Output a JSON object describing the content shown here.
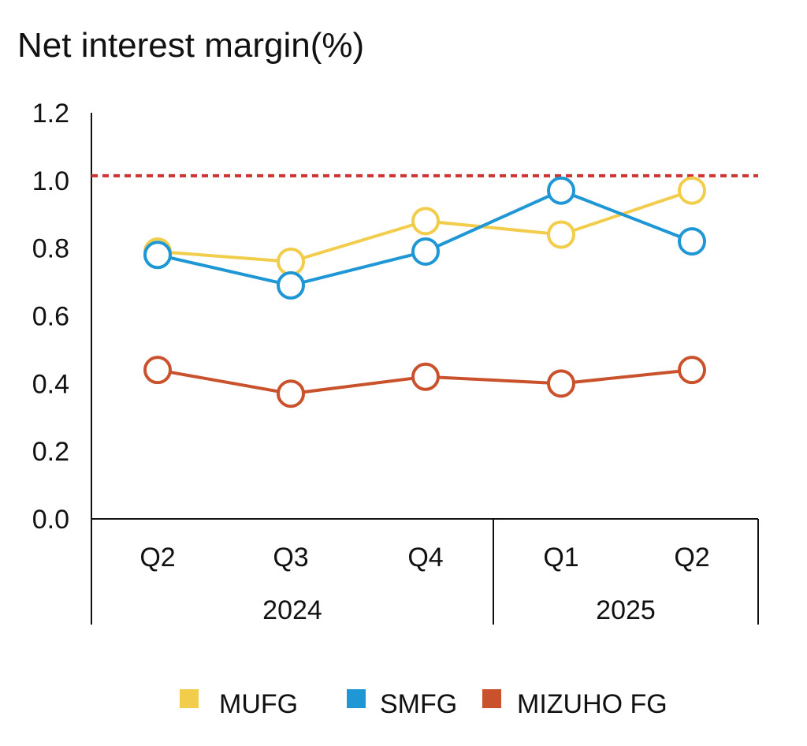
{
  "chart_data": {
    "type": "line",
    "title": "Net interest margin(%)",
    "categories": [
      "Q2",
      "Q3",
      "Q4",
      "Q1",
      "Q2"
    ],
    "groups": [
      {
        "label": "2024",
        "count": 3
      },
      {
        "label": "2025",
        "count": 2
      }
    ],
    "ylim": [
      0,
      1.2
    ],
    "yticks": [
      "1.2",
      "1.0",
      "0.8",
      "0.6",
      "0.4",
      "0.2",
      "0.0"
    ],
    "reference_line": {
      "value": 1.0,
      "color": "#cc3333",
      "style": "dashed"
    },
    "series": [
      {
        "name": "MUFG",
        "color": "#f2cd4c",
        "values": [
          0.79,
          0.76,
          0.88,
          0.84,
          0.97
        ]
      },
      {
        "name": "SMFG",
        "color": "#1f97d4",
        "values": [
          0.78,
          0.69,
          0.79,
          0.97,
          0.82
        ]
      },
      {
        "name": "MIZUHO FG",
        "color": "#c9522c",
        "values": [
          0.44,
          0.37,
          0.42,
          0.4,
          0.44
        ]
      }
    ],
    "legend_position": "bottom",
    "grid": false
  }
}
